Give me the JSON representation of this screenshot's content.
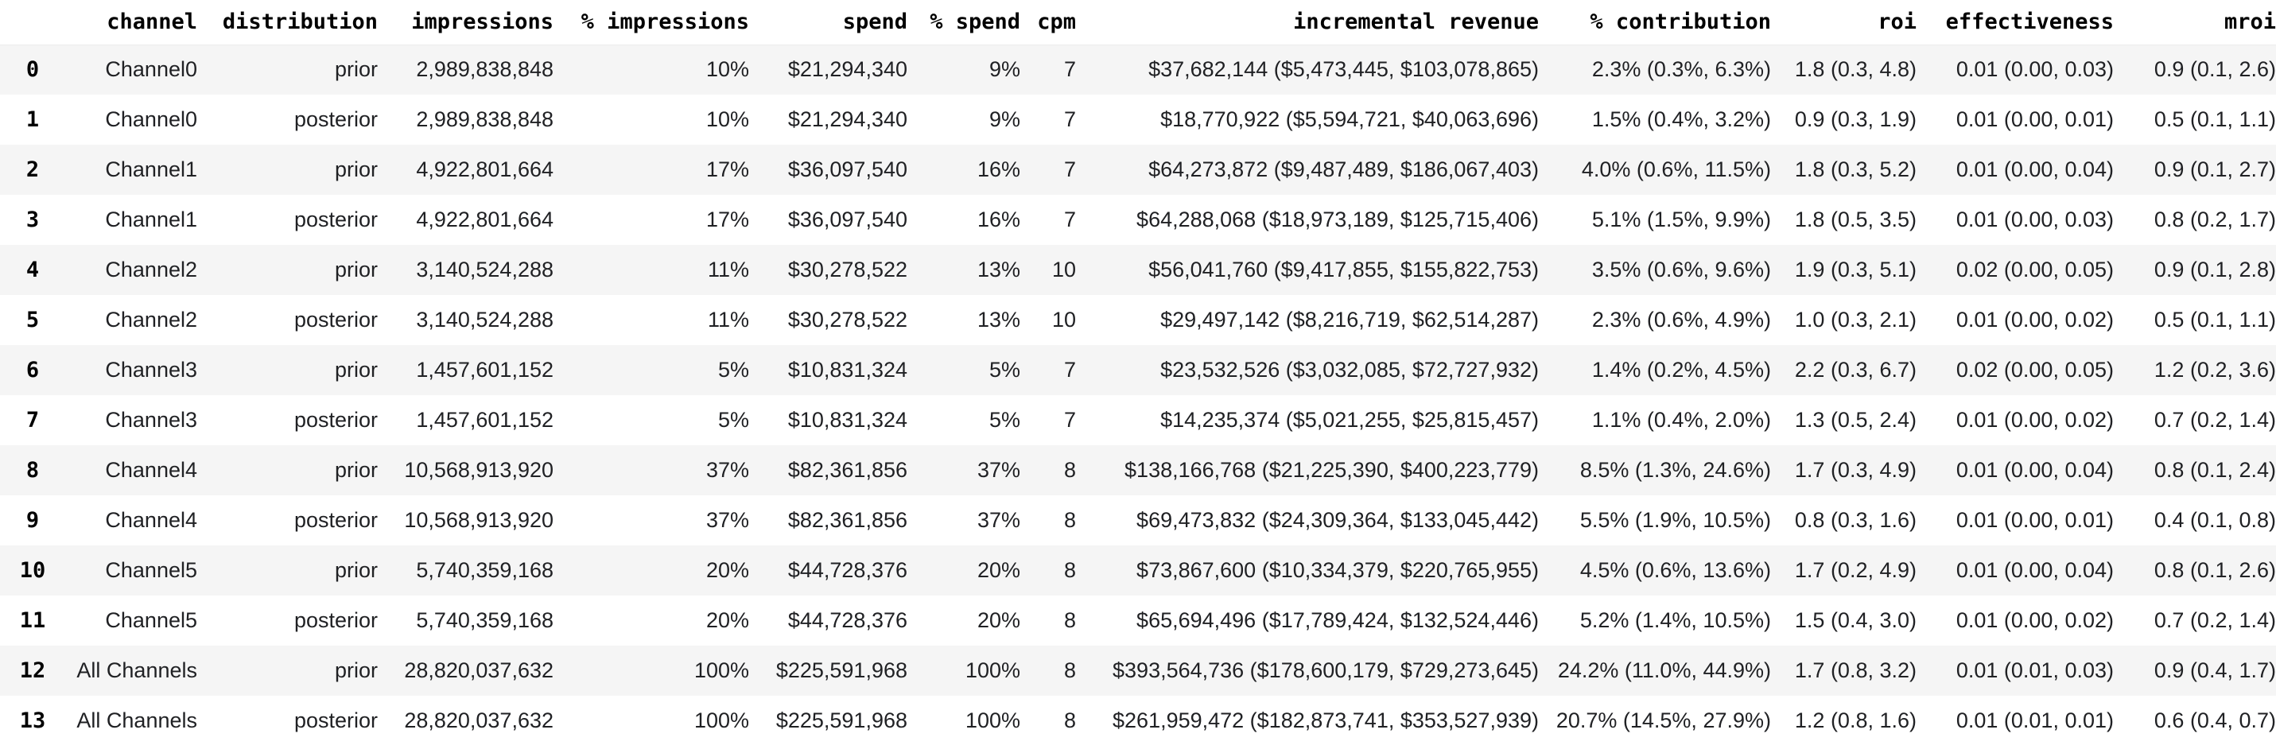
{
  "table": {
    "columns": [
      {
        "key": "index",
        "label": ""
      },
      {
        "key": "channel",
        "label": "channel"
      },
      {
        "key": "distribution",
        "label": "distribution"
      },
      {
        "key": "impressions",
        "label": "impressions"
      },
      {
        "key": "pct_impressions",
        "label": "% impressions"
      },
      {
        "key": "spend",
        "label": "spend"
      },
      {
        "key": "pct_spend",
        "label": "% spend"
      },
      {
        "key": "cpm",
        "label": "cpm"
      },
      {
        "key": "incremental_revenue",
        "label": "incremental revenue"
      },
      {
        "key": "pct_contribution",
        "label": "% contribution"
      },
      {
        "key": "roi",
        "label": "roi"
      },
      {
        "key": "effectiveness",
        "label": "effectiveness"
      },
      {
        "key": "mroi",
        "label": "mroi"
      }
    ],
    "rows": [
      [
        "0",
        "Channel0",
        "prior",
        "2,989,838,848",
        "10%",
        "$21,294,340",
        "9%",
        "7",
        "$37,682,144 ($5,473,445, $103,078,865)",
        "2.3% (0.3%, 6.3%)",
        "1.8 (0.3, 4.8)",
        "0.01 (0.00, 0.03)",
        "0.9 (0.1, 2.6)"
      ],
      [
        "1",
        "Channel0",
        "posterior",
        "2,989,838,848",
        "10%",
        "$21,294,340",
        "9%",
        "7",
        "$18,770,922 ($5,594,721, $40,063,696)",
        "1.5% (0.4%, 3.2%)",
        "0.9 (0.3, 1.9)",
        "0.01 (0.00, 0.01)",
        "0.5 (0.1, 1.1)"
      ],
      [
        "2",
        "Channel1",
        "prior",
        "4,922,801,664",
        "17%",
        "$36,097,540",
        "16%",
        "7",
        "$64,273,872 ($9,487,489, $186,067,403)",
        "4.0% (0.6%, 11.5%)",
        "1.8 (0.3, 5.2)",
        "0.01 (0.00, 0.04)",
        "0.9 (0.1, 2.7)"
      ],
      [
        "3",
        "Channel1",
        "posterior",
        "4,922,801,664",
        "17%",
        "$36,097,540",
        "16%",
        "7",
        "$64,288,068 ($18,973,189, $125,715,406)",
        "5.1% (1.5%, 9.9%)",
        "1.8 (0.5, 3.5)",
        "0.01 (0.00, 0.03)",
        "0.8 (0.2, 1.7)"
      ],
      [
        "4",
        "Channel2",
        "prior",
        "3,140,524,288",
        "11%",
        "$30,278,522",
        "13%",
        "10",
        "$56,041,760 ($9,417,855, $155,822,753)",
        "3.5% (0.6%, 9.6%)",
        "1.9 (0.3, 5.1)",
        "0.02 (0.00, 0.05)",
        "0.9 (0.1, 2.8)"
      ],
      [
        "5",
        "Channel2",
        "posterior",
        "3,140,524,288",
        "11%",
        "$30,278,522",
        "13%",
        "10",
        "$29,497,142 ($8,216,719, $62,514,287)",
        "2.3% (0.6%, 4.9%)",
        "1.0 (0.3, 2.1)",
        "0.01 (0.00, 0.02)",
        "0.5 (0.1, 1.1)"
      ],
      [
        "6",
        "Channel3",
        "prior",
        "1,457,601,152",
        "5%",
        "$10,831,324",
        "5%",
        "7",
        "$23,532,526 ($3,032,085, $72,727,932)",
        "1.4% (0.2%, 4.5%)",
        "2.2 (0.3, 6.7)",
        "0.02 (0.00, 0.05)",
        "1.2 (0.2, 3.6)"
      ],
      [
        "7",
        "Channel3",
        "posterior",
        "1,457,601,152",
        "5%",
        "$10,831,324",
        "5%",
        "7",
        "$14,235,374 ($5,021,255, $25,815,457)",
        "1.1% (0.4%, 2.0%)",
        "1.3 (0.5, 2.4)",
        "0.01 (0.00, 0.02)",
        "0.7 (0.2, 1.4)"
      ],
      [
        "8",
        "Channel4",
        "prior",
        "10,568,913,920",
        "37%",
        "$82,361,856",
        "37%",
        "8",
        "$138,166,768 ($21,225,390, $400,223,779)",
        "8.5% (1.3%, 24.6%)",
        "1.7 (0.3, 4.9)",
        "0.01 (0.00, 0.04)",
        "0.8 (0.1, 2.4)"
      ],
      [
        "9",
        "Channel4",
        "posterior",
        "10,568,913,920",
        "37%",
        "$82,361,856",
        "37%",
        "8",
        "$69,473,832 ($24,309,364, $133,045,442)",
        "5.5% (1.9%, 10.5%)",
        "0.8 (0.3, 1.6)",
        "0.01 (0.00, 0.01)",
        "0.4 (0.1, 0.8)"
      ],
      [
        "10",
        "Channel5",
        "prior",
        "5,740,359,168",
        "20%",
        "$44,728,376",
        "20%",
        "8",
        "$73,867,600 ($10,334,379, $220,765,955)",
        "4.5% (0.6%, 13.6%)",
        "1.7 (0.2, 4.9)",
        "0.01 (0.00, 0.04)",
        "0.8 (0.1, 2.6)"
      ],
      [
        "11",
        "Channel5",
        "posterior",
        "5,740,359,168",
        "20%",
        "$44,728,376",
        "20%",
        "8",
        "$65,694,496 ($17,789,424, $132,524,446)",
        "5.2% (1.4%, 10.5%)",
        "1.5 (0.4, 3.0)",
        "0.01 (0.00, 0.02)",
        "0.7 (0.2, 1.4)"
      ],
      [
        "12",
        "All Channels",
        "prior",
        "28,820,037,632",
        "100%",
        "$225,591,968",
        "100%",
        "8",
        "$393,564,736 ($178,600,179, $729,273,645)",
        "24.2% (11.0%, 44.9%)",
        "1.7 (0.8, 3.2)",
        "0.01 (0.01, 0.03)",
        "0.9 (0.4, 1.7)"
      ],
      [
        "13",
        "All Channels",
        "posterior",
        "28,820,037,632",
        "100%",
        "$225,591,968",
        "100%",
        "8",
        "$261,959,472 ($182,873,741, $353,527,939)",
        "20.7% (14.5%, 27.9%)",
        "1.2 (0.8, 1.6)",
        "0.01 (0.01, 0.01)",
        "0.6 (0.4, 0.7)"
      ]
    ]
  },
  "style": {
    "stripe_color": "#f5f5f5",
    "background_color": "#ffffff",
    "cell_text_color": "#202124",
    "header_text_color": "#000000"
  }
}
